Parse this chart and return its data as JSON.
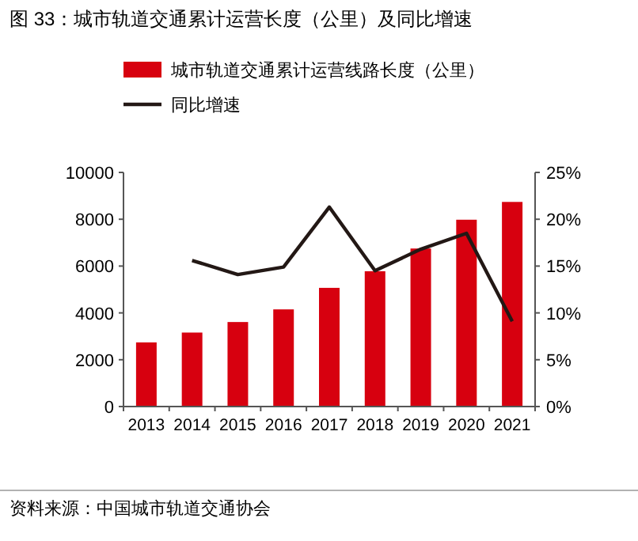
{
  "chart_data": {
    "type": "bar",
    "title": "图 33：城市轨道交通累计运营长度（公里）及同比增速",
    "categories": [
      "2013",
      "2014",
      "2015",
      "2016",
      "2017",
      "2018",
      "2019",
      "2020",
      "2021"
    ],
    "series": [
      {
        "name": "城市轨道交通累计运营线路长度（公里）",
        "color": "#d7000f",
        "values": [
          2740,
          3160,
          3610,
          4150,
          5070,
          5780,
          6750,
          7980,
          8740
        ]
      },
      {
        "name": "同比增速",
        "type": "line",
        "axis": "y2",
        "color": "#231815",
        "values": [
          null,
          15.6,
          14.1,
          14.9,
          21.3,
          14.5,
          16.8,
          18.5,
          9.1
        ]
      }
    ],
    "ylim": [
      0,
      10000
    ],
    "yticks": [
      0,
      2000,
      4000,
      6000,
      8000,
      10000
    ],
    "y2lim": [
      0,
      25
    ],
    "y2ticks": [
      {
        "value": 0,
        "label": "0%"
      },
      {
        "value": 5,
        "label": "5%"
      },
      {
        "value": 10,
        "label": "10%"
      },
      {
        "value": 15,
        "label": "15%"
      },
      {
        "value": 20,
        "label": "20%"
      },
      {
        "value": 25,
        "label": "25%"
      }
    ],
    "legend": "top",
    "grid": false,
    "marker": "none",
    "line_style": "solid",
    "annotations": [
      "资料来源：中国城市轨道交通协会"
    ]
  }
}
